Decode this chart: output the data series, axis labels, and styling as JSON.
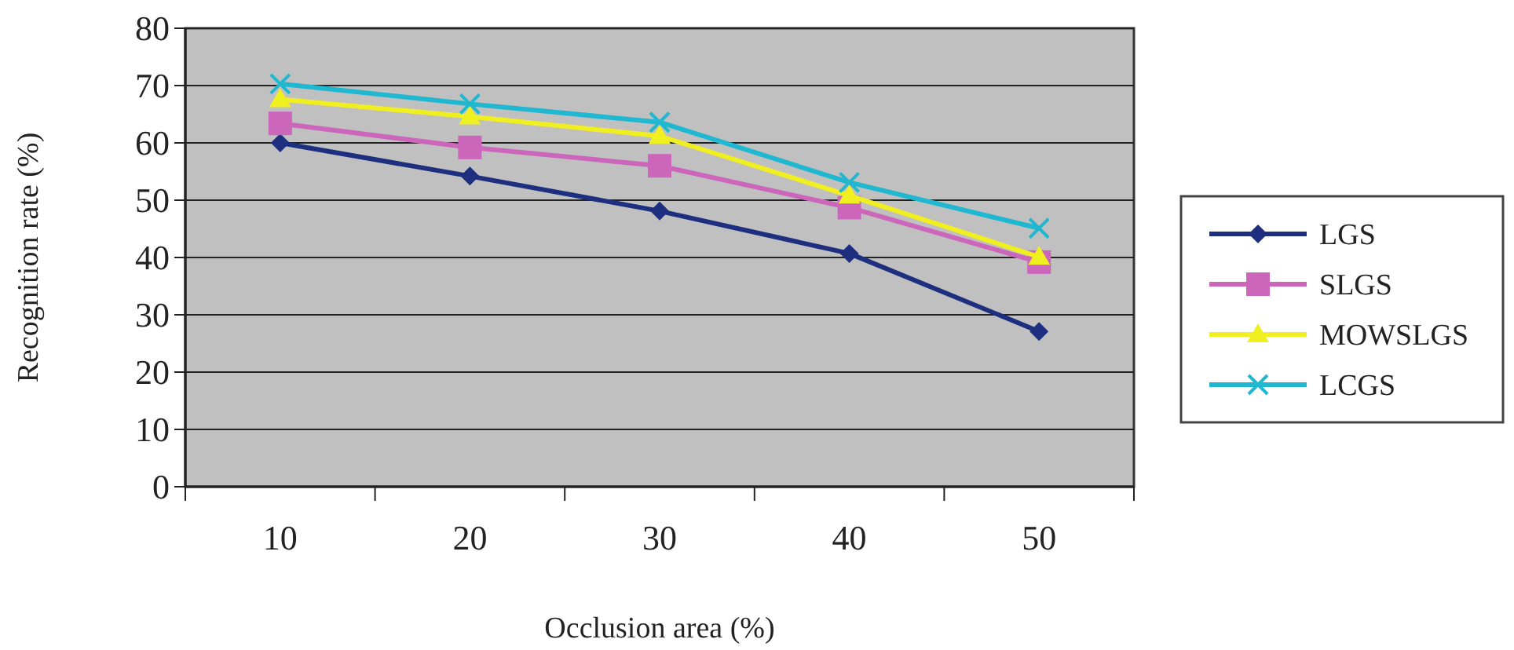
{
  "chart_data": {
    "type": "line",
    "xlabel": "Occlusion area (%)",
    "ylabel": "Recognition rate (%)",
    "categories": [
      "10",
      "20",
      "30",
      "40",
      "50"
    ],
    "ylim": [
      0,
      80
    ],
    "yticks": [
      0,
      10,
      20,
      30,
      40,
      50,
      60,
      70,
      80
    ],
    "grid": "y",
    "legend": "right",
    "series": [
      {
        "name": "LGS",
        "color": "#1f2f7f",
        "marker": "diamond",
        "values": [
          60,
          54.2,
          48.1,
          40.7,
          27.1
        ]
      },
      {
        "name": "SLGS",
        "color": "#cc66bb",
        "marker": "square",
        "values": [
          63.4,
          59.2,
          56,
          48.7,
          39.2
        ]
      },
      {
        "name": "MOWSLGS",
        "color": "#f0f020",
        "marker": "triangle",
        "values": [
          67.6,
          64.6,
          61.2,
          50.8,
          40.1
        ]
      },
      {
        "name": "LCGS",
        "color": "#20b8d0",
        "marker": "cross",
        "values": [
          70.3,
          66.8,
          63.6,
          53.1,
          45.1
        ]
      }
    ]
  }
}
